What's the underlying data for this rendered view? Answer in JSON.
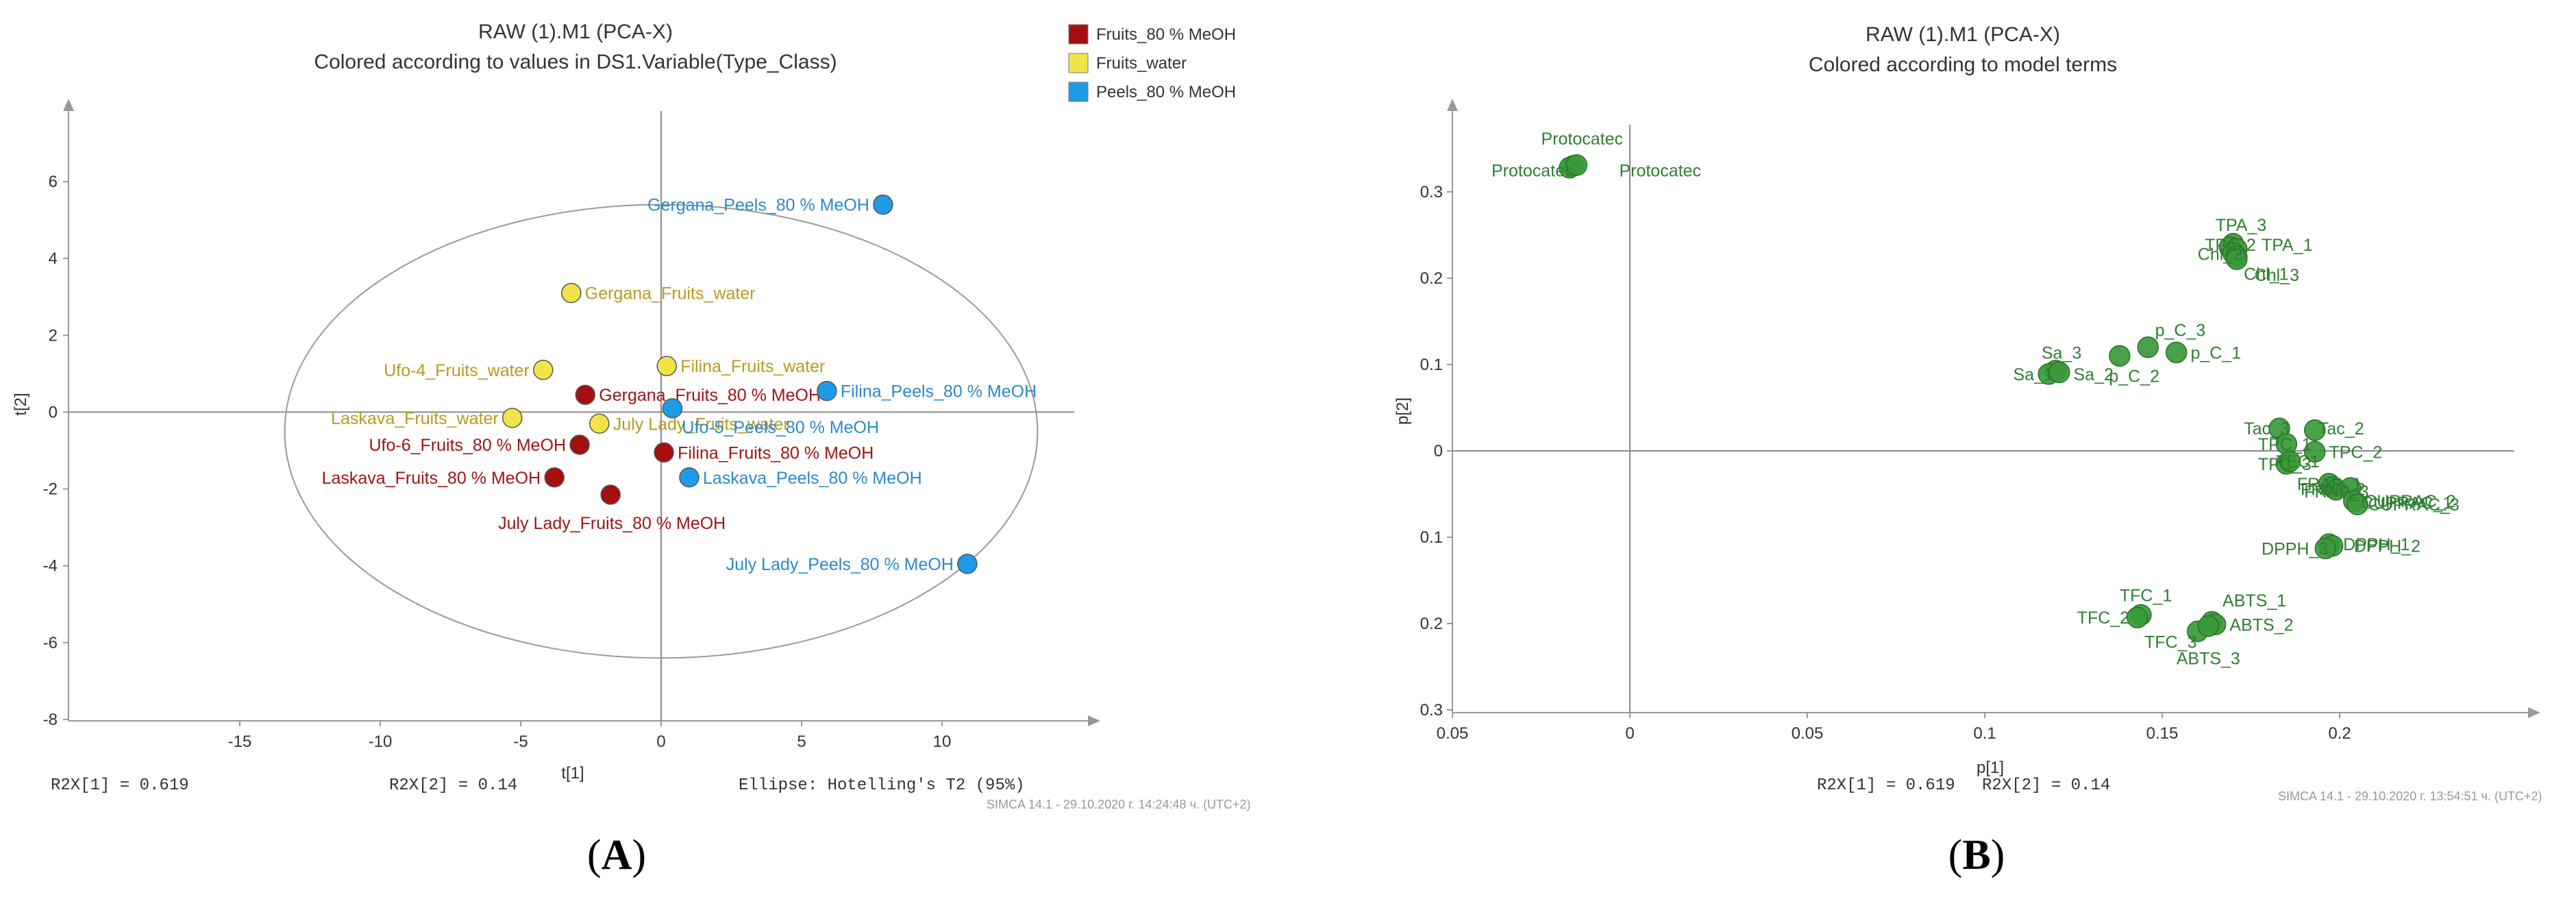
{
  "chart_data": [
    {
      "type": "scatter",
      "title": "RAW (1).M1 (PCA-X)",
      "subtitle": "Colored according to values in DS1.Variable(Type_Class)",
      "xlabel": "t[1]",
      "ylabel": "t[2]",
      "xlim": [
        -15,
        14
      ],
      "ylim": [
        -8,
        8
      ],
      "xticks": [
        -15,
        -10,
        -5,
        0,
        5,
        10
      ],
      "yticks": [
        -8,
        -6,
        -4,
        -2,
        0,
        2,
        4,
        6
      ],
      "footer_left": "R2X[1] = 0.619",
      "footer_mid": "R2X[2] = 0.14",
      "footer_right": "Ellipse: Hotelling's T2 (95%)",
      "watermark": "SIMCA 14.1 - 29.10.2020 г. 14:24:48 ч. (UTC+2)",
      "panel_label": "A",
      "legend": [
        {
          "name": "Fruits_80 % MeOH",
          "color": "#a50f0f"
        },
        {
          "name": "Fruits_water",
          "color": "#f2e34a"
        },
        {
          "name": "Peels_80 % MeOH",
          "color": "#1e9be6"
        }
      ],
      "ellipse": {
        "cx": 0,
        "cy": -0.5,
        "rx": 13.4,
        "ry": 5.9
      },
      "series": [
        {
          "name": "Fruits_80 % MeOH",
          "color": "#a50f0f",
          "label_color": "#a01515",
          "points": [
            {
              "label": "Gergana_Fruits_80 % MeOH",
              "x": -2.7,
              "y": 0.45,
              "anchor": "right"
            },
            {
              "label": "Ufo-6_Fruits_80 % MeOH",
              "x": -2.9,
              "y": -0.85,
              "anchor": "left"
            },
            {
              "label": "Laskava_Fruits_80 % MeOH",
              "x": -3.8,
              "y": -1.7,
              "anchor": "left"
            },
            {
              "label": "July Lady_Fruits_80 % MeOH",
              "x": -1.8,
              "y": -2.15,
              "anchor": "below"
            },
            {
              "label": "Filina_Fruits_80 % MeOH",
              "x": 0.1,
              "y": -1.05,
              "anchor": "right"
            }
          ]
        },
        {
          "name": "Fruits_water",
          "color": "#f2e34a",
          "label_color": "#b89a20",
          "points": [
            {
              "label": "Gergana_Fruits_water",
              "x": -3.2,
              "y": 3.1,
              "anchor": "right"
            },
            {
              "label": "Ufo-4_Fruits_water",
              "x": -4.2,
              "y": 1.1,
              "anchor": "left"
            },
            {
              "label": "Laskava_Fruits_water",
              "x": -5.3,
              "y": -0.15,
              "anchor": "left"
            },
            {
              "label": "Filina_Fruits_water",
              "x": 0.2,
              "y": 1.2,
              "anchor": "right"
            },
            {
              "label": "July Lady_Fruits_water",
              "x": -2.2,
              "y": -0.3,
              "anchor": "right"
            }
          ]
        },
        {
          "name": "Peels_80 % MeOH",
          "color": "#1e9be6",
          "label_color": "#2a8ac8",
          "points": [
            {
              "label": "Gergana_Peels_80 % MeOH",
              "x": 7.9,
              "y": 5.4,
              "anchor": "left"
            },
            {
              "label": "Filina_Peels_80 % MeOH",
              "x": 5.9,
              "y": 0.55,
              "anchor": "right"
            },
            {
              "label": "Ufo-5_Peels_80 % MeOH",
              "x": 0.4,
              "y": 0.1,
              "anchor": "below-right"
            },
            {
              "label": "Laskava_Peels_80 % MeOH",
              "x": 1.0,
              "y": -1.7,
              "anchor": "right"
            },
            {
              "label": "July Lady_Peels_80 % MeOH",
              "x": 10.9,
              "y": -3.95,
              "anchor": "left"
            }
          ]
        }
      ]
    },
    {
      "type": "scatter",
      "title": "RAW (1).M1 (PCA-X)",
      "subtitle": "Colored according to model terms",
      "xlabel": "p[1]",
      "ylabel": "p[2]",
      "xlim": [
        -0.05,
        0.25
      ],
      "ylim": [
        -0.3,
        0.4
      ],
      "xticks": [
        -0.05,
        0,
        0.05,
        0.1,
        0.15,
        0.2
      ],
      "xtick_labels": [
        "0.05",
        "0",
        "0.05",
        "0.1",
        "0.15",
        "0.2"
      ],
      "yticks": [
        -0.3,
        -0.2,
        -0.1,
        0,
        0.1,
        0.2,
        0.3
      ],
      "ytick_labels": [
        "0.3",
        "0.2",
        "0.1",
        "0",
        "0.1",
        "0.2",
        "0.3"
      ],
      "footer_left": "R2X[1] = 0.619",
      "footer_mid": "R2X[2] = 0.14",
      "watermark": "SIMCA 14.1 - 29.10.2020 г. 13:54:51 ч. (UTC+2)",
      "panel_label": "B",
      "point_color": "#3a9a3a",
      "label_color": "#2f7f2f",
      "points": [
        {
          "label": "Protocatec",
          "x": -0.016,
          "y": 0.33,
          "lx": -0.025,
          "ly": 0.362
        },
        {
          "label": "Protocatec",
          "x": -0.017,
          "y": 0.328,
          "lx": -0.039,
          "ly": 0.325
        },
        {
          "label": "Protocatec",
          "x": -0.015,
          "y": 0.331,
          "lx": -0.003,
          "ly": 0.325
        },
        {
          "label": "TPA_3",
          "x": 0.17,
          "y": 0.24,
          "lx": 0.165,
          "ly": 0.262
        },
        {
          "label": "TPA_2",
          "x": 0.169,
          "y": 0.236,
          "lx": 0.162,
          "ly": 0.239
        },
        {
          "label": "TPA_1",
          "x": 0.171,
          "y": 0.234,
          "lx": 0.178,
          "ly": 0.239
        },
        {
          "label": "Chl_2",
          "x": 0.17,
          "y": 0.229,
          "lx": 0.16,
          "ly": 0.228
        },
        {
          "label": "Chl_1",
          "x": 0.171,
          "y": 0.225,
          "lx": 0.173,
          "ly": 0.205
        },
        {
          "label": "Chl_3",
          "x": 0.171,
          "y": 0.222,
          "lx": 0.176,
          "ly": 0.204
        },
        {
          "label": "p_C_3",
          "x": 0.146,
          "y": 0.12,
          "lx": 0.148,
          "ly": 0.14
        },
        {
          "label": "p_C_1",
          "x": 0.154,
          "y": 0.114,
          "lx": 0.158,
          "ly": 0.114
        },
        {
          "label": "p_C_2",
          "x": 0.138,
          "y": 0.11,
          "lx": 0.135,
          "ly": 0.087
        },
        {
          "label": "Sa_3",
          "x": 0.12,
          "y": 0.093,
          "lx": 0.116,
          "ly": 0.114
        },
        {
          "label": "Sa_1",
          "x": 0.118,
          "y": 0.089,
          "lx": 0.108,
          "ly": 0.089
        },
        {
          "label": "Sa_2",
          "x": 0.121,
          "y": 0.091,
          "lx": 0.125,
          "ly": 0.089
        },
        {
          "label": "Tac_3",
          "x": 0.183,
          "y": 0.026,
          "lx": 0.173,
          "ly": 0.026
        },
        {
          "label": "Tac_2",
          "x": 0.193,
          "y": 0.024,
          "lx": 0.194,
          "ly": 0.026
        },
        {
          "label": "TPC_1",
          "x": 0.185,
          "y": 0.008,
          "lx": 0.177,
          "ly": 0.008
        },
        {
          "label": "TPC_2",
          "x": 0.193,
          "y": -0.001,
          "lx": 0.197,
          "ly": -0.001
        },
        {
          "label": "TPC_3",
          "x": 0.185,
          "y": -0.015,
          "lx": 0.177,
          "ly": -0.015
        },
        {
          "label": "TEC1",
          "x": 0.186,
          "y": -0.012,
          "lx": 0.182,
          "ly": -0.012
        },
        {
          "label": "FRAP_1",
          "x": 0.197,
          "y": -0.038,
          "lx": 0.188,
          "ly": -0.038
        },
        {
          "label": "FRAP_2",
          "x": 0.198,
          "y": -0.042,
          "lx": 0.189,
          "ly": -0.044
        },
        {
          "label": "FRAP_3",
          "x": 0.199,
          "y": -0.045,
          "lx": 0.19,
          "ly": -0.047
        },
        {
          "label": "CUPRAC_1",
          "x": 0.203,
          "y": -0.043,
          "lx": 0.206,
          "ly": -0.06
        },
        {
          "label": "CUPRAC_2",
          "x": 0.204,
          "y": -0.058,
          "lx": 0.207,
          "ly": -0.058
        },
        {
          "label": "CUPRAC_3",
          "x": 0.205,
          "y": -0.062,
          "lx": 0.208,
          "ly": -0.062
        },
        {
          "label": "DPPH_1",
          "x": 0.197,
          "y": -0.108,
          "lx": 0.201,
          "ly": -0.108
        },
        {
          "label": "DPPH_2",
          "x": 0.198,
          "y": -0.11,
          "lx": 0.204,
          "ly": -0.11
        },
        {
          "label": "DPPH_3",
          "x": 0.196,
          "y": -0.113,
          "lx": 0.178,
          "ly": -0.113
        },
        {
          "label": "TFC_1",
          "x": 0.144,
          "y": -0.19,
          "lx": 0.138,
          "ly": -0.167
        },
        {
          "label": "TFC_2",
          "x": 0.143,
          "y": -0.193,
          "lx": 0.126,
          "ly": -0.193
        },
        {
          "label": "TFC_3",
          "x": 0.16,
          "y": -0.209,
          "lx": 0.145,
          "ly": -0.221
        },
        {
          "label": "ABTS_1",
          "x": 0.164,
          "y": -0.198,
          "lx": 0.167,
          "ly": -0.173
        },
        {
          "label": "ABTS_2",
          "x": 0.165,
          "y": -0.201,
          "lx": 0.169,
          "ly": -0.201
        },
        {
          "label": "ABTS_3",
          "x": 0.163,
          "y": -0.203,
          "lx": 0.154,
          "ly": -0.24
        }
      ]
    }
  ]
}
